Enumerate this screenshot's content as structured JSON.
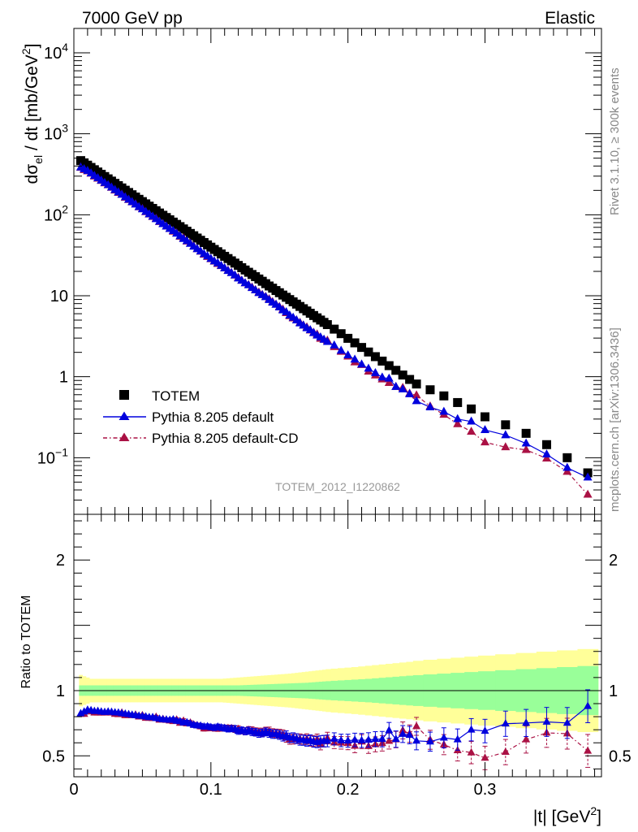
{
  "header": {
    "left": "7000 GeV pp",
    "right": "Elastic"
  },
  "side": {
    "rivet": "Rivet 3.1.10, ≥ 300k events",
    "mcplots": "mcplots.cern.ch [arXiv:1306.3436]"
  },
  "analysis_id": "TOTEM_2012_I1220862",
  "colors": {
    "totem": "#000000",
    "default": "#0000dd",
    "cd": "#aa1144",
    "band_green": "#99ff99",
    "band_yellow": "#ffff99"
  },
  "chart_data": [
    {
      "type": "scatter",
      "panel": "main",
      "ylabel": "dσel / dt [mb/GeV2]",
      "yscale": "log",
      "ylim": [
        0.02,
        20000
      ],
      "xlim": [
        0,
        0.385
      ],
      "yticks": [
        {
          "v": 10000,
          "label": "10",
          "exp": "4"
        },
        {
          "v": 1000,
          "label": "10",
          "exp": "3"
        },
        {
          "v": 100,
          "label": "10",
          "exp": "2"
        },
        {
          "v": 10,
          "label": "10",
          "exp": ""
        },
        {
          "v": 1,
          "label": "1",
          "exp": ""
        },
        {
          "v": 0.1,
          "label": "10",
          "exp": "−1"
        }
      ],
      "series": [
        {
          "name": "TOTEM",
          "marker": "square",
          "x": [
            0.005,
            0.0075,
            0.01,
            0.0125,
            0.015,
            0.0175,
            0.02,
            0.0225,
            0.025,
            0.0275,
            0.03,
            0.0325,
            0.035,
            0.0375,
            0.04,
            0.0425,
            0.045,
            0.0475,
            0.05,
            0.0525,
            0.055,
            0.0575,
            0.06,
            0.0625,
            0.065,
            0.0675,
            0.07,
            0.0725,
            0.075,
            0.0775,
            0.08,
            0.0825,
            0.085,
            0.0875,
            0.09,
            0.0925,
            0.095,
            0.0975,
            0.1,
            0.1025,
            0.105,
            0.1075,
            0.11,
            0.1125,
            0.115,
            0.1175,
            0.12,
            0.1225,
            0.125,
            0.1275,
            0.13,
            0.1325,
            0.135,
            0.1375,
            0.14,
            0.1425,
            0.145,
            0.1475,
            0.15,
            0.1525,
            0.155,
            0.1575,
            0.16,
            0.1625,
            0.165,
            0.1675,
            0.17,
            0.1725,
            0.175,
            0.1775,
            0.18,
            0.1825,
            0.185,
            0.19,
            0.195,
            0.2,
            0.205,
            0.21,
            0.215,
            0.22,
            0.225,
            0.23,
            0.235,
            0.24,
            0.245,
            0.25,
            0.26,
            0.27,
            0.28,
            0.29,
            0.3,
            0.315,
            0.33,
            0.345,
            0.36,
            0.375
          ],
          "y": [
            466.6,
            437.3,
            409.9,
            384.2,
            360.1,
            337.5,
            316.4,
            296.5,
            277.9,
            260.5,
            244.2,
            228.9,
            214.5,
            201.1,
            188.5,
            176.7,
            165.6,
            155.2,
            145.5,
            136.4,
            127.8,
            119.8,
            112.3,
            105.2,
            98.6,
            92.5,
            86.7,
            81.2,
            76.1,
            71.4,
            66.9,
            62.7,
            58.8,
            55.1,
            51.6,
            48.4,
            45.4,
            42.5,
            39.8,
            37.3,
            35.0,
            32.8,
            30.7,
            28.8,
            27.0,
            25.3,
            23.7,
            22.2,
            20.8,
            19.5,
            18.3,
            17.2,
            16.1,
            15.1,
            14.1,
            13.2,
            12.4,
            11.6,
            10.9,
            10.2,
            9.57,
            8.97,
            8.41,
            7.88,
            7.38,
            6.92,
            6.49,
            6.08,
            5.7,
            5.34,
            5.01,
            4.69,
            4.4,
            3.87,
            3.4,
            2.98,
            2.62,
            2.3,
            2.02,
            1.77,
            1.56,
            1.37,
            1.2,
            1.05,
            0.926,
            0.813,
            0.69,
            0.58,
            0.48,
            0.4,
            0.32,
            0.255,
            0.2,
            0.145,
            0.1,
            0.065
          ]
        },
        {
          "name": "Pythia 8.205 default",
          "marker": "triangle",
          "x": [
            0.005,
            0.0075,
            0.01,
            0.0125,
            0.015,
            0.0175,
            0.02,
            0.0225,
            0.025,
            0.0275,
            0.03,
            0.0325,
            0.035,
            0.0375,
            0.04,
            0.0425,
            0.045,
            0.0475,
            0.05,
            0.0525,
            0.055,
            0.0575,
            0.06,
            0.0625,
            0.065,
            0.0675,
            0.07,
            0.0725,
            0.075,
            0.0775,
            0.08,
            0.0825,
            0.085,
            0.0875,
            0.09,
            0.0925,
            0.095,
            0.0975,
            0.1,
            0.1025,
            0.105,
            0.1075,
            0.11,
            0.1125,
            0.115,
            0.1175,
            0.12,
            0.1225,
            0.125,
            0.1275,
            0.13,
            0.1325,
            0.135,
            0.1375,
            0.14,
            0.1425,
            0.145,
            0.1475,
            0.15,
            0.1525,
            0.155,
            0.1575,
            0.16,
            0.1625,
            0.165,
            0.1675,
            0.17,
            0.1725,
            0.175,
            0.1775,
            0.18,
            0.1825,
            0.185,
            0.19,
            0.195,
            0.2,
            0.205,
            0.21,
            0.215,
            0.22,
            0.225,
            0.23,
            0.235,
            0.24,
            0.245,
            0.25,
            0.26,
            0.27,
            0.28,
            0.29,
            0.3,
            0.315,
            0.33,
            0.345,
            0.36,
            0.375
          ],
          "y": [
            385,
            366,
            349,
            326,
            303,
            284,
            265,
            248,
            233,
            218,
            203,
            190,
            177,
            165,
            154,
            144,
            134,
            125,
            117,
            109,
            101.6,
            95.2,
            88.5,
            82.3,
            76.8,
            71.9,
            67.1,
            63.2,
            58.5,
            54.5,
            50.4,
            47.4,
            43.9,
            40.5,
            37.8,
            35.3,
            32.8,
            30.8,
            28.6,
            26.7,
            25.3,
            23.5,
            21.9,
            20.3,
            19.1,
            17.9,
            16.4,
            15.4,
            14.3,
            13.5,
            12.5,
            11.7,
            10.8,
            10.2,
            9.64,
            8.89,
            8.25,
            7.75,
            7.19,
            6.61,
            6.28,
            5.72,
            5.38,
            4.98,
            4.58,
            4.29,
            3.98,
            3.77,
            3.47,
            3.23,
            3.07,
            2.87,
            2.7,
            2.44,
            2.1,
            1.84,
            1.63,
            1.42,
            1.26,
            1.11,
            0.98,
            0.95,
            0.75,
            0.7,
            0.61,
            0.5,
            0.42,
            0.37,
            0.3,
            0.28,
            0.22,
            0.19,
            0.15,
            0.11,
            0.075,
            0.057
          ]
        },
        {
          "name": "Pythia 8.205 default-CD",
          "marker": "triangle",
          "x": [
            0.005,
            0.0075,
            0.01,
            0.0125,
            0.015,
            0.0175,
            0.02,
            0.0225,
            0.025,
            0.0275,
            0.03,
            0.0325,
            0.035,
            0.0375,
            0.04,
            0.0425,
            0.045,
            0.0475,
            0.05,
            0.0525,
            0.055,
            0.0575,
            0.06,
            0.0625,
            0.065,
            0.0675,
            0.07,
            0.0725,
            0.075,
            0.0775,
            0.08,
            0.0825,
            0.085,
            0.0875,
            0.09,
            0.0925,
            0.095,
            0.0975,
            0.1,
            0.1025,
            0.105,
            0.1075,
            0.11,
            0.1125,
            0.115,
            0.1175,
            0.12,
            0.1225,
            0.125,
            0.1275,
            0.13,
            0.1325,
            0.135,
            0.1375,
            0.14,
            0.1425,
            0.145,
            0.1475,
            0.15,
            0.1525,
            0.155,
            0.1575,
            0.16,
            0.1625,
            0.165,
            0.1675,
            0.17,
            0.1725,
            0.175,
            0.1775,
            0.18,
            0.1825,
            0.185,
            0.19,
            0.195,
            0.2,
            0.205,
            0.21,
            0.215,
            0.22,
            0.225,
            0.23,
            0.235,
            0.24,
            0.245,
            0.25,
            0.26,
            0.27,
            0.28,
            0.29,
            0.3,
            0.315,
            0.33,
            0.345,
            0.36,
            0.375
          ],
          "y": [
            382,
            358,
            345,
            323,
            298,
            280,
            263,
            245,
            232,
            216,
            200,
            187,
            178,
            163,
            153,
            143,
            135,
            124,
            118,
            108,
            101,
            94.4,
            89.6,
            81.6,
            77,
            71.6,
            66.8,
            62.1,
            59.1,
            53.7,
            51.4,
            46.9,
            44.3,
            40.7,
            37.8,
            35.1,
            32.2,
            30.2,
            28.4,
            26.5,
            24.8,
            23.3,
            21.9,
            20.5,
            19.2,
            17.8,
            16.7,
            15.4,
            14.3,
            13.6,
            12.7,
            11.8,
            11,
            10.3,
            9.72,
            9.09,
            8.38,
            7.8,
            7.3,
            6.78,
            6.12,
            5.61,
            5.27,
            4.98,
            4.65,
            4.31,
            4.08,
            3.74,
            3.5,
            3.34,
            2.95,
            2.87,
            2.8,
            2.33,
            2.04,
            1.78,
            1.51,
            1.4,
            1.16,
            1.04,
            0.93,
            0.84,
            0.75,
            0.73,
            0.62,
            0.59,
            0.43,
            0.34,
            0.26,
            0.21,
            0.155,
            0.135,
            0.125,
            0.098,
            0.067,
            0.035
          ]
        }
      ],
      "legend": {
        "placement": "lower-left",
        "entries": [
          "TOTEM",
          "Pythia 8.205 default",
          "Pythia 8.205 default-CD"
        ]
      }
    },
    {
      "type": "scatter",
      "panel": "ratio",
      "ylabel": "Ratio to TOTEM",
      "xlabel": "|t| [GeV2]",
      "ylim": [
        0.34,
        2.35
      ],
      "xlim": [
        0,
        0.385
      ],
      "yticks": [
        0.5,
        1,
        2
      ],
      "xticks": [
        0,
        0.1,
        0.2,
        0.3
      ],
      "band_inner": [
        0.04,
        0.04,
        0.04,
        0.04,
        0.04,
        0.04,
        0.04,
        0.04,
        0.04,
        0.04,
        0.04,
        0.04,
        0.04,
        0.04,
        0.04,
        0.04,
        0.04,
        0.04,
        0.04,
        0.04,
        0.04,
        0.04,
        0.04,
        0.04,
        0.04,
        0.04,
        0.04,
        0.04,
        0.04,
        0.04,
        0.04,
        0.04,
        0.04,
        0.04,
        0.04,
        0.04,
        0.04,
        0.04,
        0.04,
        0.04,
        0.04,
        0.04,
        0.04,
        0.04,
        0.04,
        0.04,
        0.04,
        0.041,
        0.042,
        0.043,
        0.044,
        0.045,
        0.046,
        0.047,
        0.048,
        0.049,
        0.05,
        0.051,
        0.052,
        0.053,
        0.054,
        0.055,
        0.056,
        0.057,
        0.058,
        0.059,
        0.06,
        0.062,
        0.064,
        0.066,
        0.068,
        0.07,
        0.072,
        0.075,
        0.078,
        0.081,
        0.084,
        0.087,
        0.09,
        0.094,
        0.098,
        0.102,
        0.106,
        0.11,
        0.114,
        0.118,
        0.124,
        0.13,
        0.136,
        0.142,
        0.148,
        0.156,
        0.164,
        0.172,
        0.18,
        0.188
      ],
      "band_outer": [
        0.12,
        0.11,
        0.1,
        0.09,
        0.09,
        0.09,
        0.09,
        0.09,
        0.09,
        0.09,
        0.09,
        0.09,
        0.09,
        0.09,
        0.09,
        0.09,
        0.09,
        0.09,
        0.09,
        0.09,
        0.09,
        0.09,
        0.09,
        0.09,
        0.09,
        0.09,
        0.09,
        0.09,
        0.09,
        0.09,
        0.09,
        0.09,
        0.09,
        0.09,
        0.09,
        0.09,
        0.09,
        0.09,
        0.09,
        0.09,
        0.09,
        0.09,
        0.092,
        0.094,
        0.096,
        0.098,
        0.1,
        0.102,
        0.104,
        0.106,
        0.108,
        0.11,
        0.112,
        0.114,
        0.116,
        0.118,
        0.12,
        0.122,
        0.124,
        0.126,
        0.128,
        0.13,
        0.133,
        0.136,
        0.139,
        0.142,
        0.145,
        0.148,
        0.151,
        0.154,
        0.157,
        0.16,
        0.164,
        0.168,
        0.172,
        0.176,
        0.18,
        0.185,
        0.19,
        0.195,
        0.2,
        0.205,
        0.21,
        0.215,
        0.22,
        0.228,
        0.236,
        0.244,
        0.252,
        0.26,
        0.268,
        0.278,
        0.288,
        0.298,
        0.308,
        0.318
      ],
      "series": [
        {
          "name": "Pythia 8.205 default",
          "y": [
            0.825,
            0.838,
            0.852,
            0.848,
            0.842,
            0.843,
            0.838,
            0.835,
            0.838,
            0.836,
            0.832,
            0.83,
            0.826,
            0.822,
            0.818,
            0.814,
            0.81,
            0.806,
            0.805,
            0.8,
            0.795,
            0.795,
            0.788,
            0.783,
            0.779,
            0.777,
            0.774,
            0.778,
            0.768,
            0.764,
            0.754,
            0.756,
            0.746,
            0.736,
            0.732,
            0.73,
            0.723,
            0.725,
            0.719,
            0.715,
            0.722,
            0.716,
            0.712,
            0.706,
            0.708,
            0.707,
            0.69,
            0.695,
            0.688,
            0.693,
            0.683,
            0.68,
            0.671,
            0.675,
            0.683,
            0.673,
            0.666,
            0.667,
            0.66,
            0.648,
            0.656,
            0.638,
            0.64,
            0.632,
            0.62,
            0.62,
            0.614,
            0.62,
            0.608,
            0.605,
            0.612,
            0.613,
            0.614,
            0.63,
            0.618,
            0.616,
            0.622,
            0.618,
            0.622,
            0.628,
            0.628,
            0.695,
            0.628,
            0.667,
            0.659,
            0.615,
            0.609,
            0.638,
            0.625,
            0.7,
            0.69,
            0.746,
            0.752,
            0.76,
            0.752,
            0.88
          ]
        },
        {
          "name": "Pythia 8.205 default-CD",
          "y": [
            0.82,
            0.82,
            0.84,
            0.84,
            0.83,
            0.83,
            0.83,
            0.83,
            0.835,
            0.83,
            0.82,
            0.818,
            0.83,
            0.81,
            0.812,
            0.81,
            0.815,
            0.8,
            0.81,
            0.79,
            0.79,
            0.788,
            0.798,
            0.776,
            0.781,
            0.774,
            0.77,
            0.765,
            0.777,
            0.752,
            0.768,
            0.748,
            0.753,
            0.739,
            0.733,
            0.725,
            0.709,
            0.711,
            0.714,
            0.71,
            0.709,
            0.711,
            0.713,
            0.712,
            0.711,
            0.704,
            0.705,
            0.694,
            0.688,
            0.697,
            0.694,
            0.686,
            0.683,
            0.682,
            0.689,
            0.689,
            0.676,
            0.672,
            0.67,
            0.665,
            0.639,
            0.625,
            0.627,
            0.632,
            0.63,
            0.623,
            0.629,
            0.615,
            0.614,
            0.625,
            0.589,
            0.612,
            0.636,
            0.602,
            0.6,
            0.597,
            0.576,
            0.609,
            0.574,
            0.588,
            0.596,
            0.613,
            0.625,
            0.695,
            0.67,
            0.726,
            0.623,
            0.586,
            0.542,
            0.525,
            0.484,
            0.529,
            0.625,
            0.676,
            0.67,
            0.538
          ]
        }
      ]
    }
  ]
}
